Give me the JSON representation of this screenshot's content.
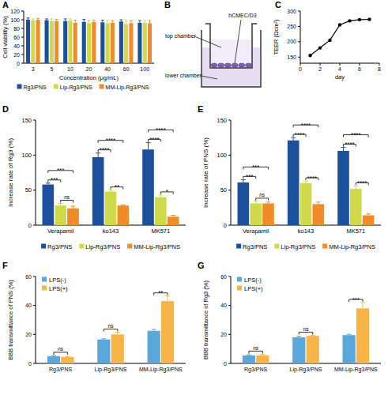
{
  "chart_data": [
    {
      "type": "bar",
      "title": "A",
      "x_label": "Concentration (μg/mL)",
      "y_label": "Cell viability (%)",
      "categories": [
        "3",
        "5",
        "10",
        "20",
        "40",
        "60",
        "100"
      ],
      "series": [
        {
          "name": "Rg3/PNS",
          "color": "#1c4f9c",
          "values": [
            100,
            99,
            97,
            95,
            94,
            96,
            93
          ],
          "errors": [
            4,
            3,
            5,
            6,
            5,
            4,
            5
          ]
        },
        {
          "name": "Lip-Rg3/PNS",
          "color": "#cfd94a",
          "values": [
            99,
            97,
            98,
            92,
            92,
            90,
            93
          ],
          "errors": [
            3,
            5,
            4,
            7,
            6,
            8,
            5
          ]
        },
        {
          "name": "MM-Lip-Rg3/PNS",
          "color": "#f08c28",
          "values": [
            100,
            97,
            93,
            95,
            93,
            92,
            92
          ],
          "errors": [
            3,
            4,
            6,
            4,
            5,
            6,
            6
          ]
        }
      ],
      "ylim": [
        0,
        120
      ],
      "yticks": [
        0,
        20,
        40,
        60,
        80,
        100,
        120
      ],
      "legend": "bottom"
    },
    {
      "type": "line",
      "title": "C",
      "x_label": "day",
      "y_label": "TEER (Ωcm²)",
      "x": [
        1,
        2,
        3,
        4,
        5,
        6,
        7
      ],
      "values": [
        155,
        180,
        205,
        255,
        268,
        272,
        273
      ],
      "color": "#000000",
      "marker": "circle",
      "xlim": [
        0,
        8
      ],
      "xticks": [
        0,
        2,
        4,
        6,
        8
      ],
      "ylim": [
        130,
        300
      ],
      "yticks": [
        150,
        200,
        250,
        300
      ]
    },
    {
      "type": "bar",
      "title": "D",
      "y_label": "Increase rate of Rg3 (%)",
      "categories": [
        "Verapamil",
        "ko143",
        "MK571"
      ],
      "series": [
        {
          "name": "Rg3/PNS",
          "color": "#1c4f9c",
          "values": [
            58,
            97,
            108
          ],
          "errors": [
            2,
            6,
            10
          ]
        },
        {
          "name": "Lip-Rg3/PNS",
          "color": "#cfd94a",
          "values": [
            28,
            48,
            40
          ],
          "errors": [
            3,
            2,
            3
          ]
        },
        {
          "name": "MM-Lip-Rg3/PNS",
          "color": "#f08c28",
          "values": [
            24,
            28,
            12
          ],
          "errors": [
            3,
            1,
            2
          ]
        }
      ],
      "ylim": [
        0,
        150
      ],
      "yticks": [
        0,
        50,
        100,
        150
      ],
      "legend": "bottom",
      "annotations": [
        {
          "text": "***",
          "category": 0,
          "series": [
            0,
            1
          ]
        },
        {
          "text": "ns",
          "category": 0,
          "series": [
            1,
            2
          ]
        },
        {
          "text": "***",
          "category": 0,
          "series": [
            0,
            2
          ]
        },
        {
          "text": "****",
          "category": 1,
          "series": [
            0,
            1
          ]
        },
        {
          "text": "**",
          "category": 1,
          "series": [
            1,
            2
          ]
        },
        {
          "text": "****",
          "category": 1,
          "series": [
            0,
            2
          ]
        },
        {
          "text": "****",
          "category": 2,
          "series": [
            0,
            1
          ]
        },
        {
          "text": "*",
          "category": 2,
          "series": [
            1,
            2
          ]
        },
        {
          "text": "****",
          "category": 2,
          "series": [
            0,
            2
          ]
        }
      ]
    },
    {
      "type": "bar",
      "title": "E",
      "y_label": "Increase rate of PNS (%)",
      "categories": [
        "Verapamil",
        "ko143",
        "MK571"
      ],
      "series": [
        {
          "name": "Rg3/PNS",
          "color": "#1c4f9c",
          "values": [
            61,
            121,
            106
          ],
          "errors": [
            4,
            4,
            5
          ]
        },
        {
          "name": "Lip-Rg3/PNS",
          "color": "#cfd94a",
          "values": [
            31,
            60,
            52
          ],
          "errors": [
            3,
            3,
            4
          ]
        },
        {
          "name": "MM-Lip-Rg3/PNS",
          "color": "#f08c28",
          "values": [
            31,
            30,
            14
          ],
          "errors": [
            2,
            3,
            2
          ]
        }
      ],
      "ylim": [
        0,
        150
      ],
      "yticks": [
        0,
        50,
        100,
        150
      ],
      "legend": "bottom",
      "annotations": [
        {
          "text": "***",
          "category": 0,
          "series": [
            0,
            1
          ]
        },
        {
          "text": "ns",
          "category": 0,
          "series": [
            1,
            2
          ]
        },
        {
          "text": "***",
          "category": 0,
          "series": [
            0,
            2
          ]
        },
        {
          "text": "****",
          "category": 1,
          "series": [
            0,
            1
          ]
        },
        {
          "text": "****",
          "category": 1,
          "series": [
            1,
            2
          ]
        },
        {
          "text": "****",
          "category": 1,
          "series": [
            0,
            2
          ]
        },
        {
          "text": "****",
          "category": 2,
          "series": [
            0,
            1
          ]
        },
        {
          "text": "****",
          "category": 2,
          "series": [
            1,
            2
          ]
        },
        {
          "text": "****",
          "category": 2,
          "series": [
            0,
            2
          ]
        }
      ]
    },
    {
      "type": "bar",
      "title": "F",
      "y_label": "BBB transmittance of PNS (%)",
      "categories": [
        "Rg3/PNS",
        "Lip-Rg3/PNS",
        "MM-Lip-Rg3/PNS"
      ],
      "series": [
        {
          "name": "LPS(-)",
          "color": "#5aa7dc",
          "values": [
            5,
            16.5,
            22.5
          ],
          "errors": [
            0.5,
            0.5,
            1
          ]
        },
        {
          "name": "LPS(+)",
          "color": "#f7b547",
          "values": [
            4.5,
            20,
            43
          ],
          "errors": [
            0.3,
            1.5,
            3.5
          ]
        }
      ],
      "ylim": [
        0,
        60
      ],
      "yticks": [
        0,
        20,
        40,
        60
      ],
      "legend": "top-left",
      "annotations": [
        {
          "text": "ns",
          "category": 0,
          "series": [
            0,
            1
          ]
        },
        {
          "text": "ns",
          "category": 1,
          "series": [
            0,
            1
          ]
        },
        {
          "text": "**",
          "category": 2,
          "series": [
            0,
            1
          ]
        }
      ]
    },
    {
      "type": "bar",
      "title": "G",
      "y_label": "BBB transmittance of Rg3 (%)",
      "categories": [
        "Rg3/PNS",
        "Lip-Rg3/PNS",
        "MM-Lip-Rg3/PNS"
      ],
      "series": [
        {
          "name": "LPS(-)",
          "color": "#5aa7dc",
          "values": [
            5.5,
            18,
            19.5
          ],
          "errors": [
            0.5,
            0.8,
            0.6
          ]
        },
        {
          "name": "LPS(+)",
          "color": "#f7b547",
          "values": [
            5.5,
            19,
            38
          ],
          "errors": [
            0.8,
            0.3,
            4
          ]
        }
      ],
      "ylim": [
        0,
        60
      ],
      "yticks": [
        0,
        20,
        40,
        60
      ],
      "legend": "top-left",
      "annotations": [
        {
          "text": "ns",
          "category": 0,
          "series": [
            0,
            1
          ]
        },
        {
          "text": "ns",
          "category": 1,
          "series": [
            0,
            1
          ]
        },
        {
          "text": "***",
          "category": 2,
          "series": [
            0,
            1
          ]
        }
      ]
    }
  ],
  "diagram": {
    "title": "B",
    "top_label": "top chamber",
    "lower_label": "lower chamber",
    "cells_label": "hCMEC/D3"
  }
}
